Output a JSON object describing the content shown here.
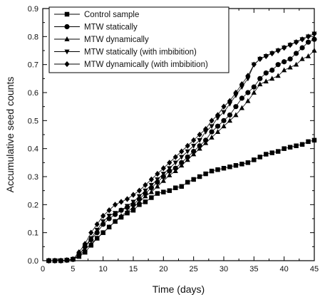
{
  "colors": {
    "ink": "#000000",
    "line": "#000000",
    "background": "#ffffff"
  },
  "chart_data": {
    "type": "line",
    "xlabel": "Time (days)",
    "ylabel": "Accumulative seed counts",
    "xlim": [
      0,
      45
    ],
    "ylim": [
      0.0,
      0.9
    ],
    "xticks": [
      0,
      5,
      10,
      15,
      20,
      25,
      30,
      35,
      40,
      45
    ],
    "yticks": [
      0.0,
      0.1,
      0.2,
      0.3,
      0.4,
      0.5,
      0.6,
      0.7,
      0.8,
      0.9
    ],
    "xtick_labels": [
      "0",
      "5",
      "10",
      "15",
      "20",
      "25",
      "30",
      "35",
      "40",
      "45"
    ],
    "ytick_labels": [
      "0.0",
      "0.1",
      "0.2",
      "0.3",
      "0.4",
      "0.5",
      "0.6",
      "0.7",
      "0.8",
      "0.9"
    ],
    "grid": false,
    "legend_position": "top-left",
    "x": [
      1,
      2,
      3,
      4,
      5,
      6,
      7,
      8,
      9,
      10,
      11,
      12,
      13,
      14,
      15,
      16,
      17,
      18,
      19,
      20,
      21,
      22,
      23,
      24,
      25,
      26,
      27,
      28,
      29,
      30,
      31,
      32,
      33,
      34,
      35,
      36,
      37,
      38,
      39,
      40,
      41,
      42,
      43,
      44,
      45
    ],
    "series": [
      {
        "name": "Control sample",
        "marker": "square",
        "values": [
          0,
          0,
          0,
          0.002,
          0.005,
          0.015,
          0.03,
          0.055,
          0.08,
          0.1,
          0.12,
          0.14,
          0.155,
          0.17,
          0.18,
          0.2,
          0.21,
          0.225,
          0.24,
          0.245,
          0.25,
          0.26,
          0.265,
          0.28,
          0.29,
          0.3,
          0.31,
          0.32,
          0.325,
          0.33,
          0.335,
          0.34,
          0.345,
          0.35,
          0.36,
          0.37,
          0.38,
          0.385,
          0.39,
          0.4,
          0.405,
          0.41,
          0.415,
          0.425,
          0.43
        ]
      },
      {
        "name": "MTW statically",
        "marker": "circle",
        "values": [
          0,
          0,
          0,
          0.002,
          0.005,
          0.02,
          0.05,
          0.075,
          0.1,
          0.13,
          0.15,
          0.165,
          0.18,
          0.19,
          0.2,
          0.22,
          0.24,
          0.26,
          0.28,
          0.3,
          0.32,
          0.33,
          0.35,
          0.37,
          0.39,
          0.41,
          0.43,
          0.46,
          0.48,
          0.5,
          0.52,
          0.55,
          0.58,
          0.6,
          0.62,
          0.65,
          0.67,
          0.68,
          0.7,
          0.71,
          0.72,
          0.74,
          0.76,
          0.78,
          0.79
        ]
      },
      {
        "name": "MTW dynamically",
        "marker": "triangle-up",
        "values": [
          0,
          0,
          0,
          0.002,
          0.005,
          0.015,
          0.04,
          0.06,
          0.08,
          0.1,
          0.12,
          0.14,
          0.16,
          0.175,
          0.19,
          0.21,
          0.23,
          0.245,
          0.265,
          0.285,
          0.305,
          0.32,
          0.34,
          0.36,
          0.38,
          0.4,
          0.42,
          0.44,
          0.46,
          0.48,
          0.5,
          0.52,
          0.545,
          0.57,
          0.6,
          0.63,
          0.64,
          0.65,
          0.66,
          0.68,
          0.69,
          0.7,
          0.72,
          0.73,
          0.75
        ]
      },
      {
        "name": "MTW statically (with imbibition)",
        "marker": "triangle-down",
        "values": [
          0,
          0,
          0,
          0.002,
          0.005,
          0.02,
          0.05,
          0.08,
          0.11,
          0.14,
          0.16,
          0.17,
          0.18,
          0.195,
          0.21,
          0.23,
          0.25,
          0.27,
          0.29,
          0.31,
          0.33,
          0.35,
          0.37,
          0.39,
          0.41,
          0.43,
          0.46,
          0.48,
          0.51,
          0.53,
          0.56,
          0.59,
          0.62,
          0.65,
          0.7,
          0.72,
          0.73,
          0.74,
          0.75,
          0.76,
          0.77,
          0.78,
          0.79,
          0.8,
          0.81
        ]
      },
      {
        "name": "MTW dynamically (with imbibition)",
        "marker": "diamond",
        "values": [
          0,
          0,
          0,
          0.002,
          0.005,
          0.03,
          0.06,
          0.1,
          0.13,
          0.16,
          0.18,
          0.2,
          0.21,
          0.22,
          0.235,
          0.25,
          0.27,
          0.29,
          0.31,
          0.33,
          0.35,
          0.37,
          0.39,
          0.41,
          0.43,
          0.45,
          0.47,
          0.5,
          0.52,
          0.55,
          0.57,
          0.6,
          0.63,
          0.66,
          0.7,
          0.72,
          0.73,
          0.74,
          0.75,
          0.76,
          0.77,
          0.78,
          0.79,
          0.8,
          0.81
        ]
      }
    ]
  }
}
